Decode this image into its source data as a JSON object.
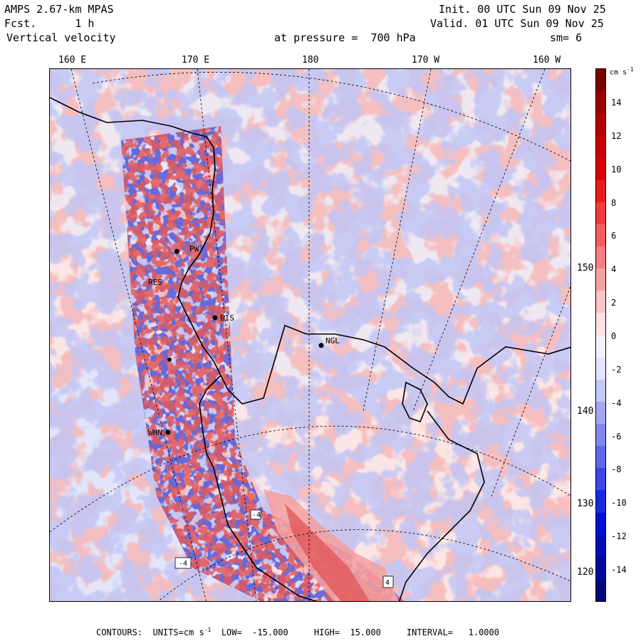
{
  "header": {
    "model": "AMPS 2.67-km MPAS",
    "forecast": "Fcst.      1 h",
    "field": "Vertical velocity",
    "init": "Init. 00 UTC Sun 09 Nov 25",
    "valid": "Valid. 01 UTC Sun 09 Nov 25",
    "pressure": "at pressure =  700 hPa",
    "smoothing": "sm= 6"
  },
  "longitude_labels": [
    "160 E",
    "170 E",
    "180",
    "170 W",
    "160 W"
  ],
  "latitude_labels": [
    "150 W",
    "140 W",
    "130 W",
    "120 W"
  ],
  "stations": [
    {
      "id": "BIS",
      "label": "BIS"
    },
    {
      "id": "NGL",
      "label": "NGL"
    },
    {
      "id": "PW",
      "label": "PW"
    },
    {
      "id": "WHN",
      "label": "WHN"
    },
    {
      "id": "RES",
      "label": "RES"
    }
  ],
  "contour_labels": [
    "-4",
    "-4",
    "4"
  ],
  "colorbar": {
    "unit": "cm s",
    "unit_exp": "-1",
    "ticks": [
      "14",
      "12",
      "10",
      "8",
      "6",
      "4",
      "2",
      "0",
      "-2",
      "-4",
      "-6",
      "-8",
      "-10",
      "-12",
      "-14"
    ],
    "colors": [
      "#7a0000",
      "#9a0000",
      "#b40000",
      "#c80000",
      "#dc0000",
      "#eb1a1a",
      "#f23c3c",
      "#f45e5e",
      "#f58080",
      "#f7a2a2",
      "#f9c4c4",
      "#fce2e2",
      "#f2f3fd",
      "#e2e4fb",
      "#c4c8f7",
      "#a2a8f2",
      "#8088ee",
      "#5e68ea",
      "#3c48e6",
      "#1a28e0",
      "#0010d4",
      "#000cb4",
      "#000a9a",
      "#00087a"
    ]
  },
  "footer": {
    "contours": "CONTOURS:",
    "units": "UNITS=cm s",
    "units_exp": "-1",
    "low": "LOW=  -15.000",
    "high": "HIGH=  15.000",
    "interval": "INTERVAL=   1.0000"
  }
}
